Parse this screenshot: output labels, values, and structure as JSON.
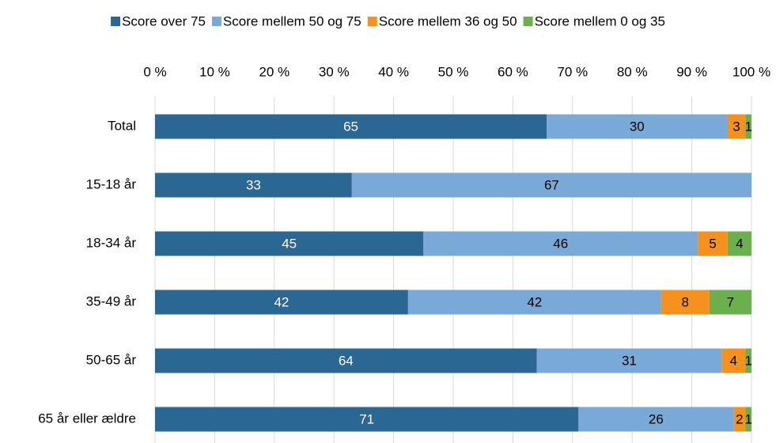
{
  "chart_data": {
    "type": "bar",
    "orientation": "horizontal",
    "stacking": "percent",
    "categories": [
      "Total",
      "15-18 år",
      "18-34 år",
      "35-49 år",
      "50-65 år",
      "65 år eller ældre"
    ],
    "series": [
      {
        "name": "Score over 75",
        "color": "#2a6792",
        "values": [
          65,
          33,
          45,
          42,
          64,
          71
        ]
      },
      {
        "name": "Score mellem 50 og 75",
        "color": "#79a9d6",
        "values": [
          30,
          67,
          46,
          42,
          31,
          26
        ]
      },
      {
        "name": "Score mellem 36 og 50",
        "color": "#f5921e",
        "values": [
          3,
          null,
          5,
          8,
          4,
          2
        ]
      },
      {
        "name": "Score mellem 0 og 35",
        "color": "#6ab04c",
        "values": [
          1,
          null,
          4,
          7,
          1,
          1
        ]
      }
    ],
    "xlim": [
      0,
      100
    ],
    "xticks": [
      {
        "value": 0,
        "label": "0 %"
      },
      {
        "value": 10,
        "label": "10 %"
      },
      {
        "value": 20,
        "label": "20 %"
      },
      {
        "value": 30,
        "label": "30 %"
      },
      {
        "value": 40,
        "label": "40 %"
      },
      {
        "value": 50,
        "label": "50 %"
      },
      {
        "value": 60,
        "label": "60 %"
      },
      {
        "value": 70,
        "label": "70 %"
      },
      {
        "value": 80,
        "label": "80 %"
      },
      {
        "value": 90,
        "label": "90 %"
      },
      {
        "value": 100,
        "label": "100 %"
      }
    ],
    "grid": true,
    "legend": "top"
  }
}
